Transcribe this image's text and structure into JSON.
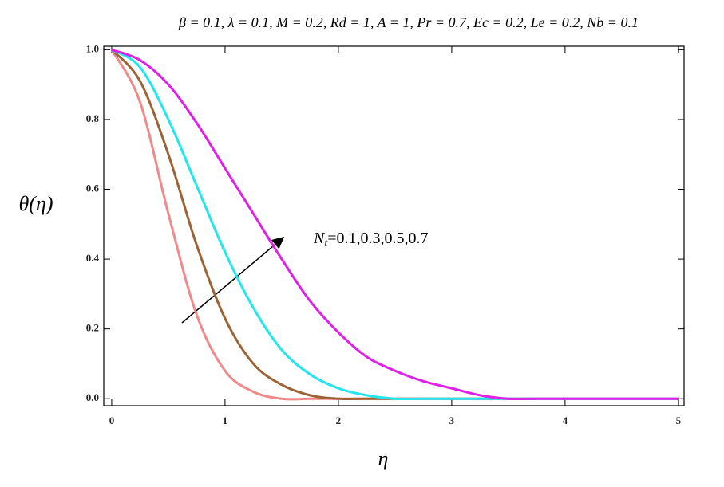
{
  "chart_data": {
    "type": "line",
    "title": "β = 0.1, λ = 0.1, M = 0.2, Rd = 1, A = 1, Pr = 0.7, Ec = 0.2, Le = 0.2, Nb = 0.1",
    "y_label": "θ(η)",
    "x_label": "η",
    "annotation": {
      "base": "N",
      "sub": "t",
      "text": "=0.1,0.3,0.5,0.7"
    },
    "x": [
      0,
      0.25,
      0.5,
      0.75,
      1,
      1.25,
      1.5,
      1.75,
      2,
      2.25,
      2.5,
      2.75,
      3,
      3.25,
      3.5,
      3.75,
      4,
      4.25,
      4.5,
      4.75,
      5
    ],
    "series": [
      {
        "color": "#f08a8a",
        "values": [
          1,
          0.85,
          0.53,
          0.24,
          0.08,
          0.02,
          0,
          0,
          0,
          0,
          0,
          0,
          0,
          0,
          0,
          0,
          0,
          0,
          0,
          0,
          0
        ]
      },
      {
        "color": "#9c6436",
        "values": [
          1,
          0.91,
          0.7,
          0.44,
          0.23,
          0.1,
          0.04,
          0.01,
          0,
          0,
          0,
          0,
          0,
          0,
          0,
          0,
          0,
          0,
          0,
          0,
          0
        ]
      },
      {
        "color": "#22e6ee",
        "values": [
          1,
          0.95,
          0.8,
          0.61,
          0.42,
          0.26,
          0.14,
          0.07,
          0.03,
          0.01,
          0,
          0,
          0,
          0,
          0,
          0,
          0,
          0,
          0,
          0,
          0
        ]
      },
      {
        "color": "#e020e8",
        "values": [
          1,
          0.97,
          0.9,
          0.79,
          0.66,
          0.53,
          0.4,
          0.28,
          0.19,
          0.12,
          0.08,
          0.05,
          0.03,
          0.01,
          0,
          0,
          0,
          0,
          0,
          0,
          0
        ]
      }
    ],
    "xlim": [
      -0.07,
      5.05
    ],
    "ylim": [
      -0.02,
      1.01
    ],
    "xticks": [
      0,
      1,
      2,
      3,
      4,
      5
    ],
    "yticks": [
      {
        "value": 0,
        "label": "0.0"
      },
      {
        "value": 0.2,
        "label": "0.2"
      },
      {
        "value": 0.4,
        "label": "0.4"
      },
      {
        "value": 0.6,
        "label": "0.6"
      },
      {
        "value": 0.8,
        "label": "0.8"
      },
      {
        "value": 1,
        "label": "1.0"
      }
    ]
  }
}
